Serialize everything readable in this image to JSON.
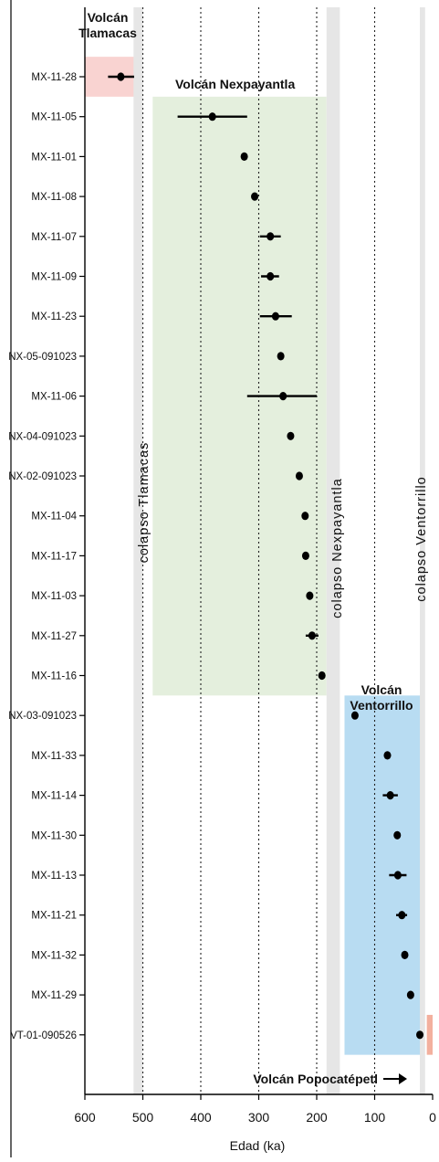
{
  "chart_data": {
    "type": "scatter",
    "xlabel": "Edad (ka)",
    "x_reversed": true,
    "xlim": [
      0,
      600
    ],
    "xticks": [
      600,
      500,
      400,
      300,
      200,
      100,
      0
    ],
    "grid_lines_at": [
      500,
      400,
      300,
      200,
      100
    ],
    "samples": [
      {
        "label": "MX-11-28",
        "age": 538,
        "err_low": 515,
        "err_high": 560
      },
      {
        "label": "MX-11-05",
        "age": 380,
        "err_low": 320,
        "err_high": 440
      },
      {
        "label": "MX-11-01",
        "age": 325,
        "err_low": 322,
        "err_high": 328
      },
      {
        "label": "MX-11-08",
        "age": 307,
        "err_low": 303,
        "err_high": 311
      },
      {
        "label": "MX-11-07",
        "age": 280,
        "err_low": 262,
        "err_high": 298
      },
      {
        "label": "MX-11-09",
        "age": 280,
        "err_low": 265,
        "err_high": 296
      },
      {
        "label": "MX-11-23",
        "age": 271,
        "err_low": 243,
        "err_high": 298
      },
      {
        "label": "NX-05-091023",
        "age": 262,
        "err_low": 259,
        "err_high": 265
      },
      {
        "label": "MX-11-06",
        "age": 258,
        "err_low": 200,
        "err_high": 320
      },
      {
        "label": "NX-04-091023",
        "age": 245,
        "err_low": 242,
        "err_high": 248
      },
      {
        "label": "NX-02-091023",
        "age": 230,
        "err_low": 227,
        "err_high": 233
      },
      {
        "label": "MX-11-04",
        "age": 220,
        "err_low": 217,
        "err_high": 223
      },
      {
        "label": "MX-11-17",
        "age": 219,
        "err_low": 216,
        "err_high": 222
      },
      {
        "label": "MX-11-03",
        "age": 212,
        "err_low": 207,
        "err_high": 217
      },
      {
        "label": "MX-11-27",
        "age": 208,
        "err_low": 197,
        "err_high": 219
      },
      {
        "label": "MX-11-16",
        "age": 191,
        "err_low": 185,
        "err_high": 197
      },
      {
        "label": "NX-03-091023",
        "age": 134,
        "err_low": 131,
        "err_high": 137
      },
      {
        "label": "MX-11-33",
        "age": 78,
        "err_low": 72,
        "err_high": 84
      },
      {
        "label": "MX-11-14",
        "age": 73,
        "err_low": 60,
        "err_high": 86
      },
      {
        "label": "MX-11-30",
        "age": 61,
        "err_low": 56,
        "err_high": 67
      },
      {
        "label": "MX-11-13",
        "age": 60,
        "err_low": 45,
        "err_high": 75
      },
      {
        "label": "MX-11-21",
        "age": 53,
        "err_low": 44,
        "err_high": 63
      },
      {
        "label": "MX-11-32",
        "age": 48,
        "err_low": 45,
        "err_high": 51
      },
      {
        "label": "MX-11-29",
        "age": 38,
        "err_low": 33,
        "err_high": 44
      },
      {
        "label": "VT-01-090526",
        "age": 22,
        "err_low": 17,
        "err_high": 27
      }
    ],
    "regions": [
      {
        "name": "Volcán Tlamacas",
        "label_lines": [
          "Volcán",
          "Tlamacas"
        ],
        "color": "#f9d3d1",
        "age_from": 515,
        "age_to": 600,
        "first_row": 0,
        "last_row": 0
      },
      {
        "name": "Volcán Nexpayantla",
        "label_lines": [
          "Volcán Nexpayantla"
        ],
        "color": "#e4efdd",
        "age_from": 183,
        "age_to": 483,
        "first_row": 1,
        "last_row": 15
      },
      {
        "name": "Volcán Ventorrillo",
        "label_lines": [
          "Volcán",
          "Ventorrillo"
        ],
        "color": "#b8dcf2",
        "age_from": 20,
        "age_to": 152,
        "first_row": 16,
        "last_row": 24
      },
      {
        "name": "Volcán Popocatépetl",
        "label_lines": [
          "Volcán Popocatépetl"
        ],
        "color": "#f3b09e",
        "age_from": 0,
        "age_to": 10,
        "first_row": 24,
        "last_row": 24
      }
    ],
    "collapse_bands": [
      {
        "label": "colapso Tlamacas",
        "age_from": 500,
        "age_to": 516
      },
      {
        "label": "colapso Nexpayantla",
        "age_from": 160,
        "age_to": 183
      },
      {
        "label": "colapso Ventorrillo",
        "age_from": 13,
        "age_to": 22
      }
    ]
  }
}
